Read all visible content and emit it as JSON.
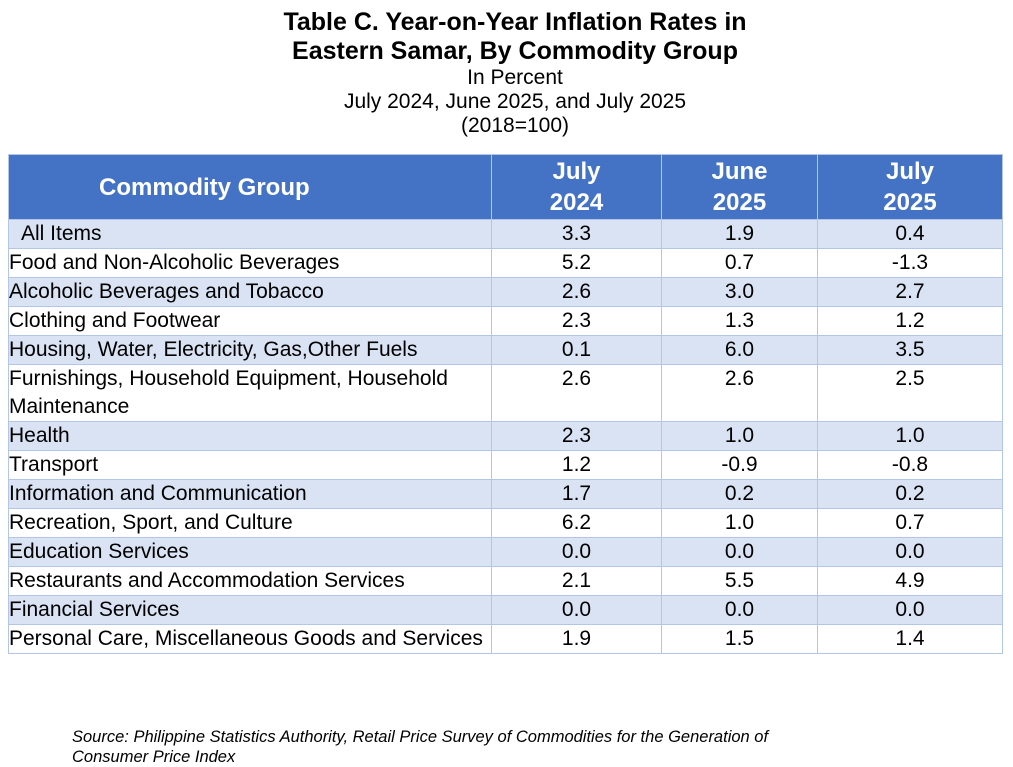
{
  "chart_data": {
    "type": "table",
    "title_lines": [
      "Table C. Year-on-Year Inflation Rates in",
      "Eastern Samar, By Commodity Group"
    ],
    "subtitle_lines": [
      "In Percent",
      "July 2024, June 2025, and July 2025",
      "(2018=100)"
    ],
    "header": {
      "group": "Commodity Group",
      "columns": [
        {
          "line1": "July",
          "line2": "2024"
        },
        {
          "line1": "June",
          "line2": "2025"
        },
        {
          "line1": "July",
          "line2": "2025"
        }
      ]
    },
    "rows": [
      {
        "label": "All Items",
        "values": [
          "3.3",
          "1.9",
          "0.4"
        ]
      },
      {
        "label": "Food and Non-Alcoholic Beverages",
        "values": [
          "5.2",
          "0.7",
          "-1.3"
        ]
      },
      {
        "label": "Alcoholic Beverages and Tobacco",
        "values": [
          "2.6",
          "3.0",
          "2.7"
        ]
      },
      {
        "label": "Clothing and Footwear",
        "values": [
          "2.3",
          "1.3",
          "1.2"
        ]
      },
      {
        "label": "Housing, Water, Electricity, Gas,Other Fuels",
        "values": [
          "0.1",
          "6.0",
          "3.5"
        ]
      },
      {
        "label": "Furnishings, Household Equipment, Household Maintenance",
        "values": [
          "2.6",
          "2.6",
          "2.5"
        ]
      },
      {
        "label": "Health",
        "values": [
          "2.3",
          "1.0",
          "1.0"
        ]
      },
      {
        "label": "Transport",
        "values": [
          "1.2",
          "-0.9",
          "-0.8"
        ]
      },
      {
        "label": "Information and Communication",
        "values": [
          "1.7",
          "0.2",
          "0.2"
        ]
      },
      {
        "label": "Recreation, Sport, and Culture",
        "values": [
          "6.2",
          "1.0",
          "0.7"
        ]
      },
      {
        "label": "Education Services",
        "values": [
          "0.0",
          "0.0",
          "0.0"
        ]
      },
      {
        "label": "Restaurants and Accommodation Services",
        "values": [
          "2.1",
          "5.5",
          "4.9"
        ]
      },
      {
        "label": "Financial Services",
        "values": [
          "0.0",
          "0.0",
          "0.0"
        ]
      },
      {
        "label": "Personal Care, Miscellaneous Goods and Services",
        "values": [
          "1.9",
          "1.5",
          "1.4"
        ]
      }
    ],
    "source_lines": [
      "Source: Philippine Statistics Authority, Retail Price Survey of Commodities for the Generation of",
      "Consumer Price Index"
    ],
    "colors": {
      "header_bg": "#4472c4",
      "header_text": "#ffffff",
      "stripe": "#dae3f3",
      "border": "#b4c6e7"
    }
  }
}
